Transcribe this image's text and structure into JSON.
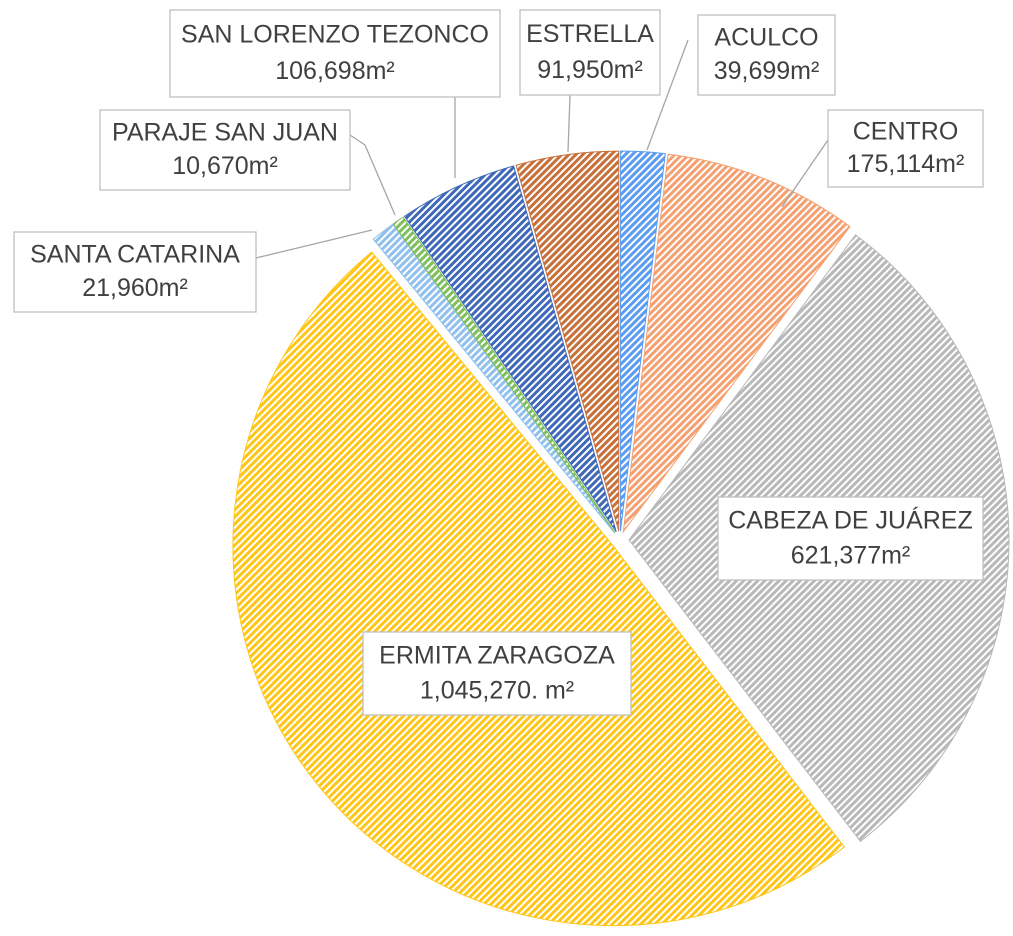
{
  "chart_data": {
    "type": "pie",
    "categories": [
      "ACULCO",
      "CENTRO",
      "CABEZA DE JUÁREZ",
      "ERMITA ZARAGOZA",
      "SANTA CATARINA",
      "PARAJE SAN JUAN",
      "SAN LORENZO TEZONCO",
      "ESTRELLA"
    ],
    "values": [
      39699,
      175114,
      621377,
      1045270,
      21960,
      10670,
      106698,
      91950
    ],
    "value_labels": [
      "39,699m²",
      "175,114m²",
      "621,377m²",
      "1,045,270. m²",
      "21,960m²",
      "10,670m²",
      "106,698m²",
      "91,950m²"
    ],
    "colors": [
      "#5b9bf0",
      "#f4a070",
      "#b8b8b8",
      "#ffc61a",
      "#8fc0ee",
      "#7fbf5a",
      "#3f68b8",
      "#c8703a"
    ]
  }
}
